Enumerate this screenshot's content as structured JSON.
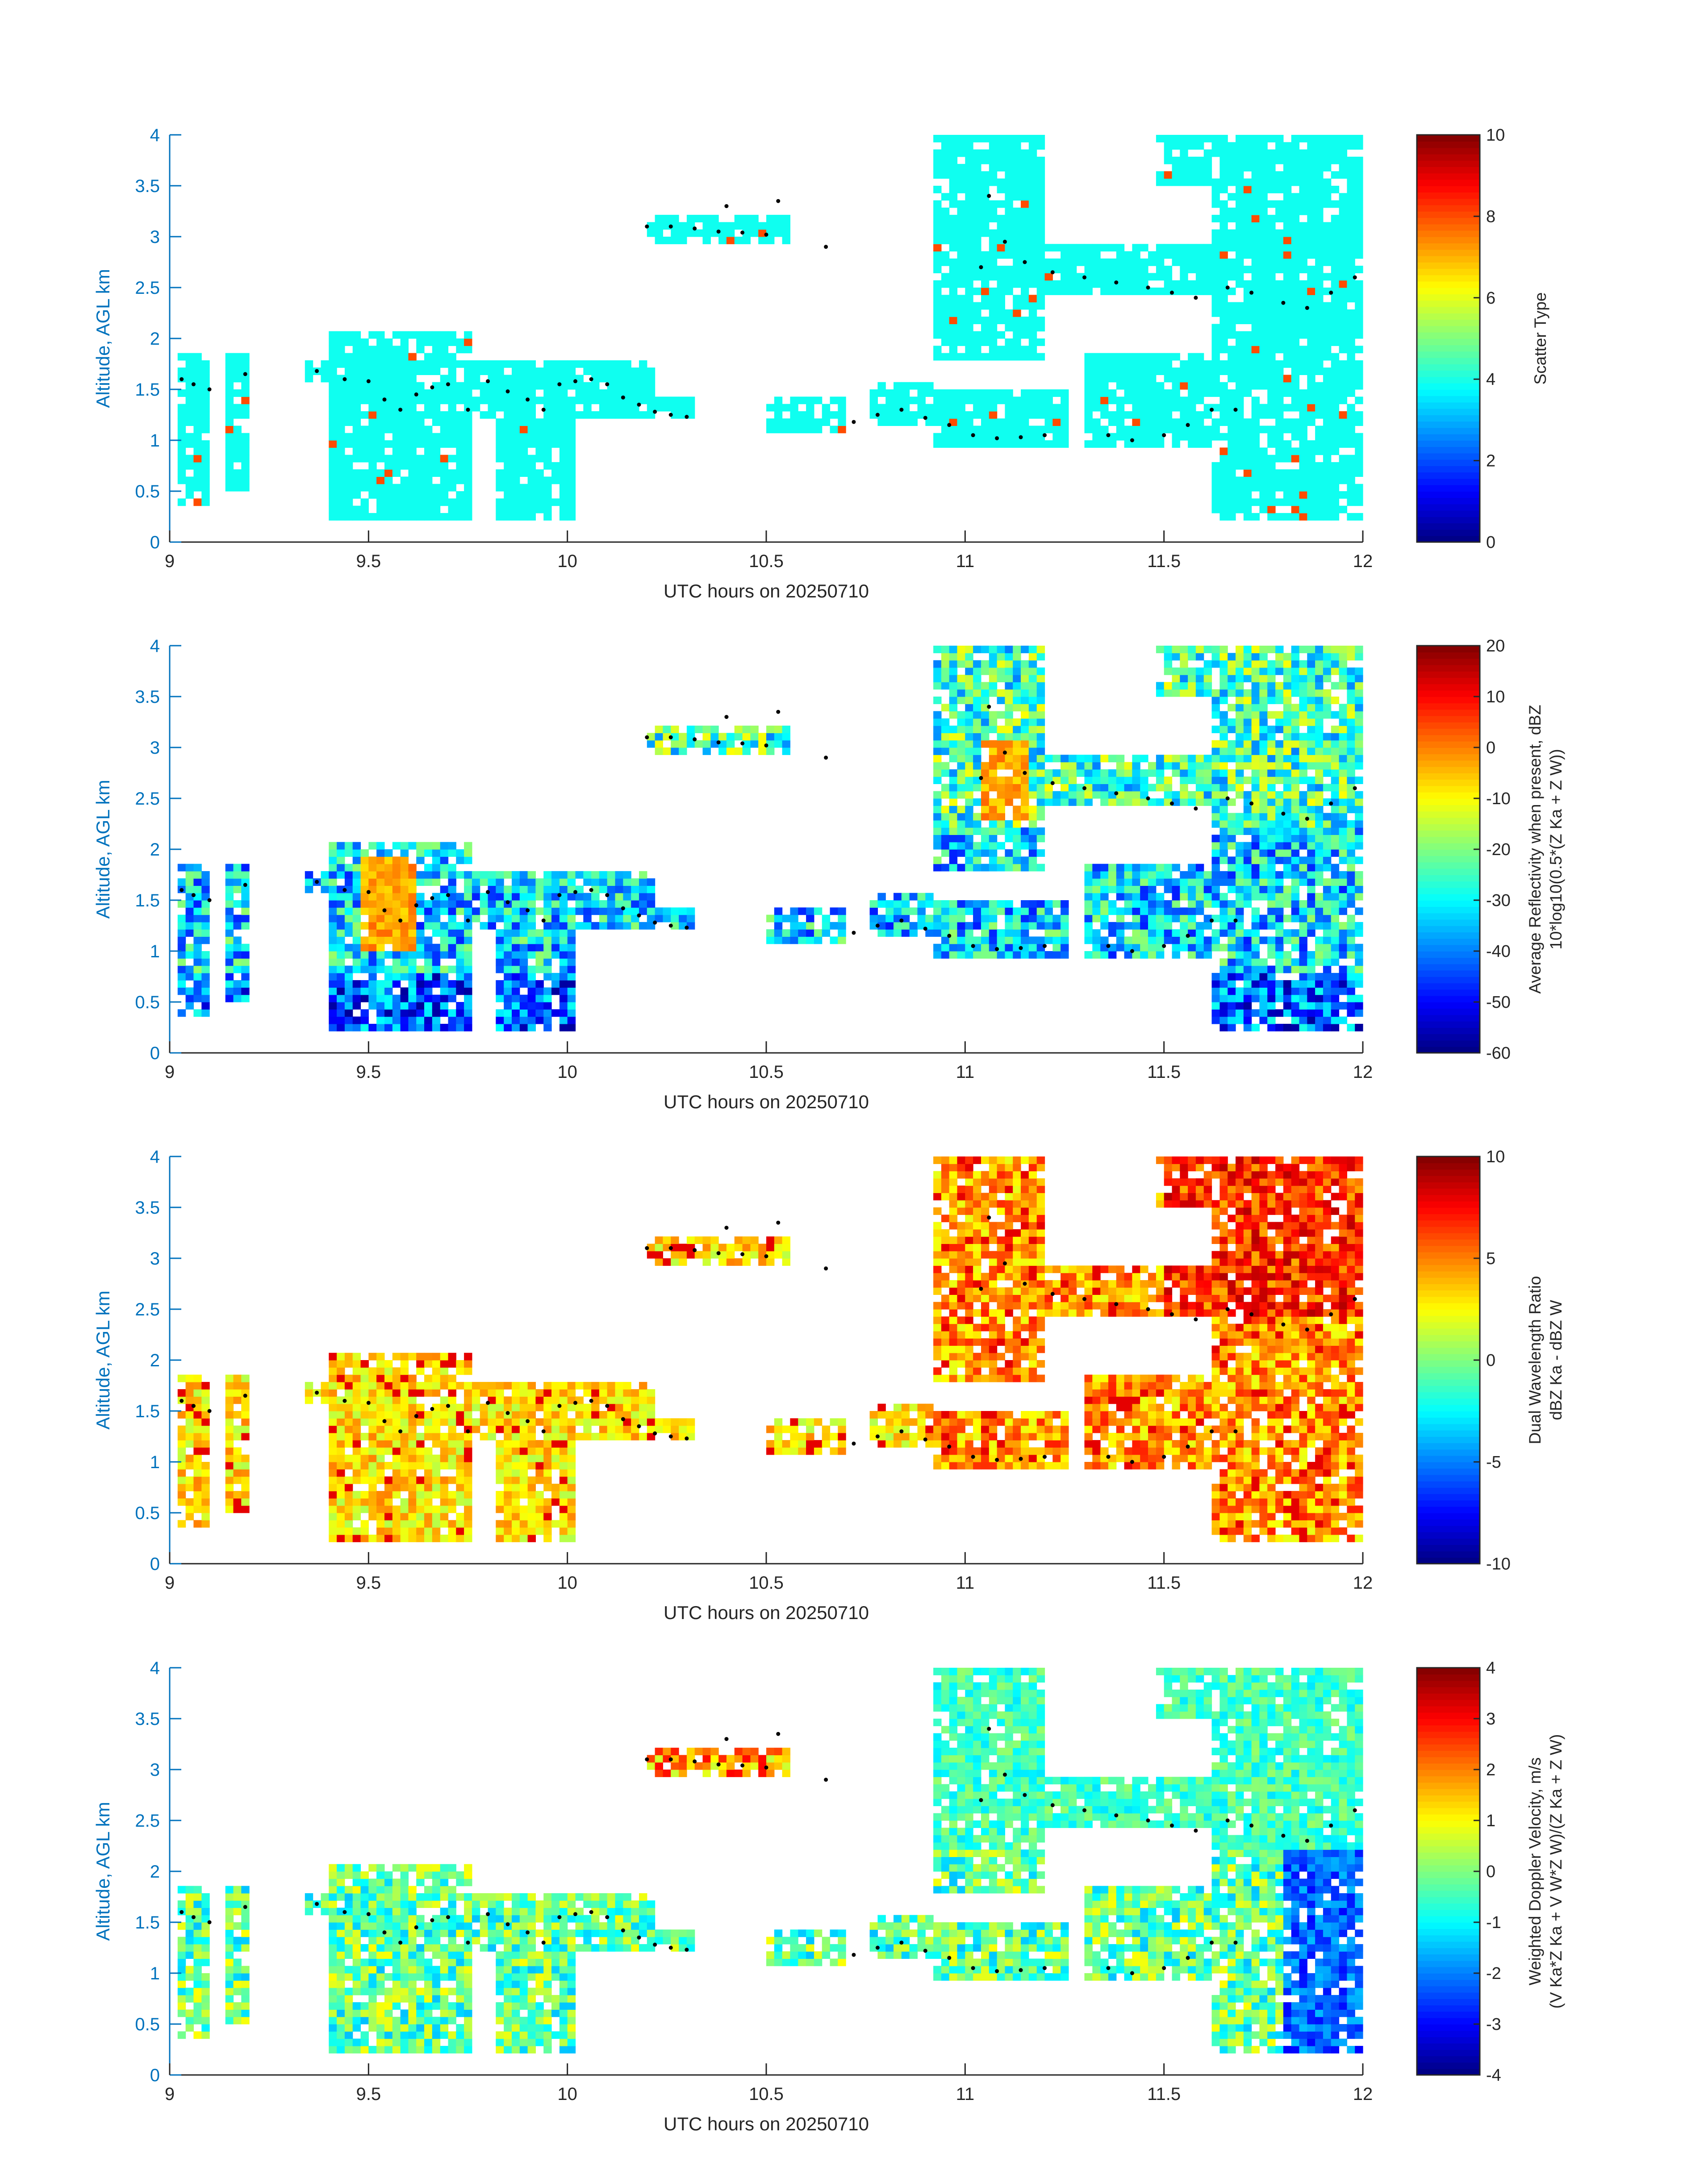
{
  "chart_data": [
    {
      "type": "heatmap",
      "panel": "scatter-type",
      "xlabel": "UTC hours on 20250710",
      "ylabel": "Altitude, AGL km",
      "xlim": [
        9,
        12
      ],
      "ylim": [
        0,
        4
      ],
      "xticks": [
        "9",
        "9.5",
        "10",
        "10.5",
        "11",
        "11.5",
        "12"
      ],
      "yticks": [
        "0",
        "0.5",
        "1",
        "1.5",
        "2",
        "2.5",
        "3",
        "3.5",
        "4"
      ],
      "colorbar": {
        "range": [
          0,
          10
        ],
        "ticks": [
          "0",
          "2",
          "4",
          "6",
          "8",
          "10"
        ],
        "label1": "Scatter Type",
        "label2": ""
      },
      "field": "type"
    },
    {
      "type": "heatmap",
      "panel": "reflectivity",
      "xlabel": "UTC hours on 20250710",
      "ylabel": "Altitude, AGL km",
      "xlim": [
        9,
        12
      ],
      "ylim": [
        0,
        4
      ],
      "xticks": [
        "9",
        "9.5",
        "10",
        "10.5",
        "11",
        "11.5",
        "12"
      ],
      "yticks": [
        "0",
        "0.5",
        "1",
        "1.5",
        "2",
        "2.5",
        "3",
        "3.5",
        "4"
      ],
      "colorbar": {
        "range": [
          -60,
          20
        ],
        "ticks": [
          "-60",
          "-50",
          "-40",
          "-30",
          "-20",
          "-10",
          "0",
          "10",
          "20"
        ],
        "label1": "Average Reflectivity when present, dBZ",
        "label2": "10*log10(0.5*(Z Ka + Z W))"
      },
      "field": "refl"
    },
    {
      "type": "heatmap",
      "panel": "dual-wavelength-ratio",
      "xlabel": "UTC hours on 20250710",
      "ylabel": "Altitude, AGL km",
      "xlim": [
        9,
        12
      ],
      "ylim": [
        0,
        4
      ],
      "xticks": [
        "9",
        "9.5",
        "10",
        "10.5",
        "11",
        "11.5",
        "12"
      ],
      "yticks": [
        "0",
        "0.5",
        "1",
        "1.5",
        "2",
        "2.5",
        "3",
        "3.5",
        "4"
      ],
      "colorbar": {
        "range": [
          -10,
          10
        ],
        "ticks": [
          "-10",
          "-5",
          "0",
          "5",
          "10"
        ],
        "label1": "Dual Wavelength Ratio",
        "label2": "dBZ Ka - dBZ W"
      },
      "field": "dwr"
    },
    {
      "type": "heatmap",
      "panel": "doppler-velocity",
      "xlabel": "UTC hours on 20250710",
      "ylabel": "Altitude, AGL km",
      "xlim": [
        9,
        12
      ],
      "ylim": [
        0,
        4
      ],
      "xticks": [
        "9",
        "9.5",
        "10",
        "10.5",
        "11",
        "11.5",
        "12"
      ],
      "yticks": [
        "0",
        "0.5",
        "1",
        "1.5",
        "2",
        "2.5",
        "3",
        "3.5",
        "4"
      ],
      "colorbar": {
        "range": [
          -4,
          4
        ],
        "ticks": [
          "-4",
          "-3",
          "-2",
          "-1",
          "0",
          "1",
          "2",
          "3",
          "4"
        ],
        "label1": "Weighted Doppler Velocity, m/s",
        "label2": "(V Ka*Z Ka + V W*Z W)/(Z Ka + Z W)"
      },
      "field": "vel"
    }
  ],
  "cloud_regions": [
    {
      "x": [
        9.02,
        9.09
      ],
      "y": [
        0.35,
        1.85
      ]
    },
    {
      "x": [
        9.15,
        9.2
      ],
      "y": [
        0.5,
        1.85
      ]
    },
    {
      "x": [
        9.34,
        9.4
      ],
      "y": [
        1.6,
        1.75
      ]
    },
    {
      "x": [
        9.4,
        9.75
      ],
      "y": [
        0.2,
        2.1
      ]
    },
    {
      "x": [
        9.73,
        9.82
      ],
      "y": [
        1.2,
        1.8
      ]
    },
    {
      "x": [
        9.82,
        10.02
      ],
      "y": [
        0.2,
        1.75
      ]
    },
    {
      "x": [
        10.02,
        10.22
      ],
      "y": [
        1.25,
        1.75
      ]
    },
    {
      "x": [
        10.22,
        10.31
      ],
      "y": [
        1.2,
        1.45
      ]
    },
    {
      "x": [
        10.2,
        10.55
      ],
      "y": [
        2.95,
        3.2
      ]
    },
    {
      "x": [
        10.5,
        10.7
      ],
      "y": [
        1.1,
        1.45
      ]
    },
    {
      "x": [
        10.77,
        10.91
      ],
      "y": [
        1.15,
        1.55
      ]
    },
    {
      "x": [
        10.92,
        11.25
      ],
      "y": [
        0.95,
        1.5
      ]
    },
    {
      "x": [
        10.93,
        11.2
      ],
      "y": [
        1.8,
        4.0
      ]
    },
    {
      "x": [
        11.2,
        11.62
      ],
      "y": [
        2.4,
        2.9
      ]
    },
    {
      "x": [
        11.3,
        11.72
      ],
      "y": [
        0.95,
        1.85
      ]
    },
    {
      "x": [
        11.62,
        12.0
      ],
      "y": [
        0.2,
        4.0
      ]
    },
    {
      "x": [
        11.48,
        11.63
      ],
      "y": [
        3.5,
        4.0
      ]
    }
  ],
  "melting_layer_points": [
    [
      9.03,
      1.6
    ],
    [
      9.06,
      1.55
    ],
    [
      9.1,
      1.5
    ],
    [
      9.19,
      1.65
    ],
    [
      9.37,
      1.68
    ],
    [
      9.44,
      1.6
    ],
    [
      9.5,
      1.58
    ],
    [
      9.54,
      1.4
    ],
    [
      9.58,
      1.3
    ],
    [
      9.62,
      1.45
    ],
    [
      9.66,
      1.52
    ],
    [
      9.7,
      1.55
    ],
    [
      9.75,
      1.3
    ],
    [
      9.8,
      1.58
    ],
    [
      9.85,
      1.48
    ],
    [
      9.9,
      1.4
    ],
    [
      9.94,
      1.3
    ],
    [
      9.98,
      1.55
    ],
    [
      10.02,
      1.58
    ],
    [
      10.06,
      1.6
    ],
    [
      10.1,
      1.55
    ],
    [
      10.14,
      1.42
    ],
    [
      10.18,
      1.35
    ],
    [
      10.22,
      1.28
    ],
    [
      10.26,
      1.25
    ],
    [
      10.3,
      1.23
    ],
    [
      10.2,
      3.1
    ],
    [
      10.26,
      3.1
    ],
    [
      10.32,
      3.08
    ],
    [
      10.38,
      3.05
    ],
    [
      10.44,
      3.04
    ],
    [
      10.5,
      3.02
    ],
    [
      10.53,
      3.35
    ],
    [
      10.4,
      3.3
    ],
    [
      10.65,
      2.9
    ],
    [
      10.72,
      1.18
    ],
    [
      10.78,
      1.25
    ],
    [
      10.84,
      1.3
    ],
    [
      10.9,
      1.22
    ],
    [
      10.96,
      1.15
    ],
    [
      11.02,
      1.05
    ],
    [
      11.08,
      1.02
    ],
    [
      11.14,
      1.03
    ],
    [
      11.2,
      1.05
    ],
    [
      11.04,
      2.7
    ],
    [
      11.06,
      3.4
    ],
    [
      11.1,
      2.95
    ],
    [
      11.15,
      2.75
    ],
    [
      11.22,
      2.65
    ],
    [
      11.3,
      2.6
    ],
    [
      11.38,
      2.55
    ],
    [
      11.46,
      2.5
    ],
    [
      11.52,
      2.45
    ],
    [
      11.58,
      2.4
    ],
    [
      11.66,
      2.5
    ],
    [
      11.72,
      2.45
    ],
    [
      11.8,
      2.35
    ],
    [
      11.86,
      2.3
    ],
    [
      11.92,
      2.45
    ],
    [
      11.98,
      2.6
    ],
    [
      11.36,
      1.05
    ],
    [
      11.42,
      1.0
    ],
    [
      11.5,
      1.05
    ],
    [
      11.56,
      1.15
    ],
    [
      11.62,
      1.3
    ],
    [
      11.68,
      1.3
    ]
  ]
}
